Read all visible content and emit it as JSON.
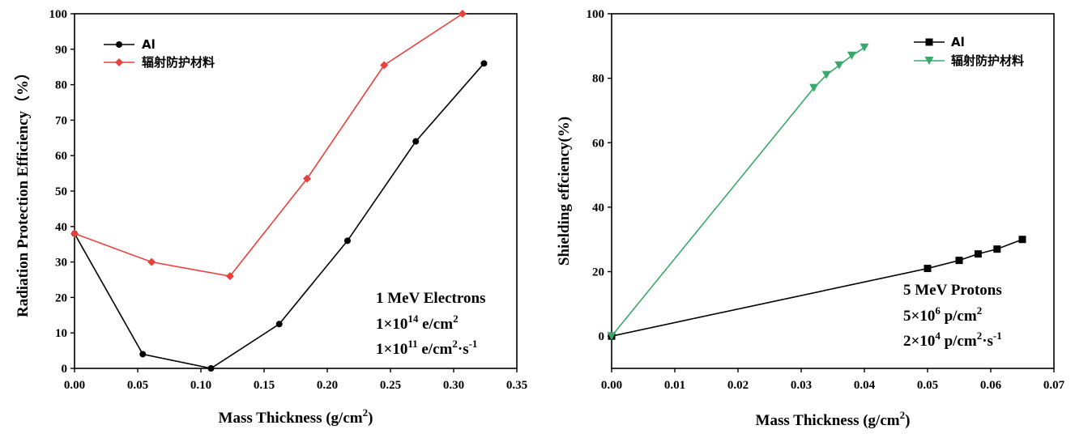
{
  "chart_data": [
    {
      "type": "line",
      "id": "left",
      "xlabel": "Mass Thickness (g/cm",
      "xlabel_sup": "2",
      "xlabel_end": ")",
      "ylabel": "Radiation Protection Efficiency（%）",
      "xlim": [
        0,
        0.35
      ],
      "ylim": [
        0,
        100
      ],
      "xticks": [
        "0.00",
        "0.05",
        "0.10",
        "0.15",
        "0.20",
        "0.25",
        "0.30",
        "0.35"
      ],
      "xtick_values": [
        0,
        0.05,
        0.1,
        0.15,
        0.2,
        0.25,
        0.3,
        0.35
      ],
      "yticks": [
        "0",
        "10",
        "20",
        "30",
        "40",
        "50",
        "60",
        "70",
        "80",
        "90",
        "100"
      ],
      "ytick_values": [
        0,
        10,
        20,
        30,
        40,
        50,
        60,
        70,
        80,
        90,
        100
      ],
      "legend_position": "top-left",
      "series": [
        {
          "name": "Al",
          "color": "#000000",
          "marker": "circle",
          "x": [
            0,
            0.054,
            0.108,
            0.162,
            0.216,
            0.27,
            0.324
          ],
          "y": [
            38,
            4,
            0,
            12.5,
            36,
            64,
            86
          ]
        },
        {
          "name": "辐射防护材料",
          "color": "#e8413c",
          "marker": "diamond",
          "x": [
            0,
            0.061,
            0.123,
            0.184,
            0.245,
            0.307
          ],
          "y": [
            38,
            30,
            26,
            53.5,
            85.5,
            100
          ]
        }
      ],
      "annotations": [
        {
          "base": "1 MeV Electrons"
        },
        {
          "base": "1×10",
          "sup": "14",
          "rest": " e/cm",
          "sup2": "2",
          "rest2": ""
        },
        {
          "base": "1×10",
          "sup": "11",
          "rest": " e/cm",
          "sup2": "2",
          "rest2": "·s",
          "sup3": "-1"
        }
      ]
    },
    {
      "type": "line",
      "id": "right",
      "xlabel": "Mass Thickness (g/cm",
      "xlabel_sup": "2",
      "xlabel_end": ")",
      "ylabel": "Shielding effciency(%)",
      "xlim": [
        0,
        0.07
      ],
      "ylim": [
        -10,
        100
      ],
      "xticks": [
        "0.00",
        "0.01",
        "0.02",
        "0.03",
        "0.04",
        "0.05",
        "0.06",
        "0.07"
      ],
      "xtick_values": [
        0,
        0.01,
        0.02,
        0.03,
        0.04,
        0.05,
        0.06,
        0.07
      ],
      "yticks": [
        "0",
        "20",
        "40",
        "60",
        "80",
        "100"
      ],
      "ytick_values": [
        0,
        20,
        40,
        60,
        80,
        100
      ],
      "legend_position": "top-right",
      "series": [
        {
          "name": "Al",
          "color": "#000000",
          "marker": "square",
          "x": [
            0,
            0.05,
            0.055,
            0.058,
            0.061,
            0.065
          ],
          "y": [
            0,
            21,
            23.5,
            25.5,
            27,
            30
          ]
        },
        {
          "name": "辐射防护材料",
          "color": "#3aa86b",
          "marker": "triangle-down",
          "x": [
            0,
            0.032,
            0.034,
            0.036,
            0.038,
            0.04
          ],
          "y": [
            0,
            77,
            81,
            84,
            87,
            89.5
          ]
        }
      ],
      "annotations": [
        {
          "base": "5 MeV Protons"
        },
        {
          "base": "5×10",
          "sup": "6",
          "rest": " p/cm",
          "sup2": "2",
          "rest2": ""
        },
        {
          "base": "2×10",
          "sup": "4",
          "rest": " p/cm",
          "sup2": "2",
          "rest2": "·s",
          "sup3": "-1"
        }
      ]
    }
  ]
}
